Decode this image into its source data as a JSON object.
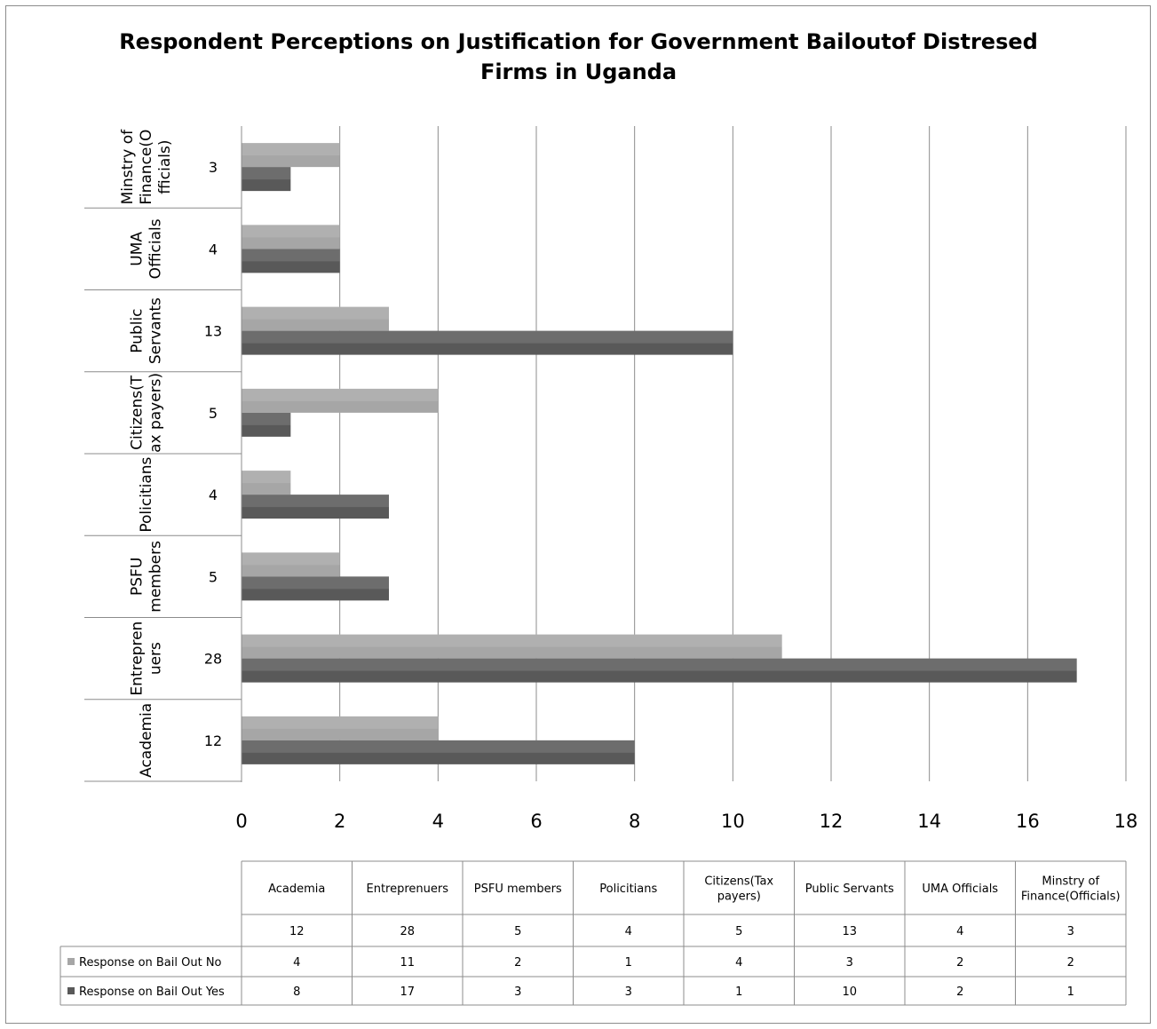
{
  "chart_data": {
    "type": "bar",
    "orientation": "horizontal",
    "title_lines": [
      "Respondent Perceptions on Justification for Government Bailoutof Distresed",
      "Firms  in Uganda"
    ],
    "categories": [
      "Academia",
      "Entreprenuers",
      "PSFU members",
      "Policitians",
      "Citizens(Tax payers)",
      "Public Servants",
      "UMA Officials",
      "Minstry of Finance(Officials)"
    ],
    "category_axis_labels": [
      [
        "Academia"
      ],
      [
        "Entrepren",
        "uers"
      ],
      [
        "PSFU",
        "members"
      ],
      [
        "Policitians"
      ],
      [
        "Citizens(T",
        "ax payers)"
      ],
      [
        "Public",
        "Servants"
      ],
      [
        "UMA",
        "Officials"
      ],
      [
        "Minstry of",
        "Finance(O",
        "fficials)"
      ]
    ],
    "table_header_labels": [
      [
        "Academia"
      ],
      [
        "Entreprenuers"
      ],
      [
        "PSFU members"
      ],
      [
        "Policitians"
      ],
      [
        "Citizens(Tax",
        "payers)"
      ],
      [
        "Public Servants"
      ],
      [
        "UMA Officials"
      ],
      [
        "Minstry of",
        "Finance(Officials)"
      ]
    ],
    "totals": [
      12,
      28,
      5,
      4,
      5,
      13,
      4,
      3
    ],
    "series": [
      {
        "name": "Response on Bail Out No",
        "values": [
          4,
          11,
          2,
          1,
          4,
          3,
          2,
          2
        ],
        "color": "#a6a6a6"
      },
      {
        "name": "Response on Bail Out Yes",
        "values": [
          8,
          17,
          3,
          3,
          1,
          10,
          2,
          1
        ],
        "color": "#595959"
      }
    ],
    "xlim": [
      0,
      18
    ],
    "x_ticks": [
      0,
      2,
      4,
      6,
      8,
      10,
      12,
      14,
      16,
      18
    ],
    "grid": true,
    "legend": "data-table"
  }
}
